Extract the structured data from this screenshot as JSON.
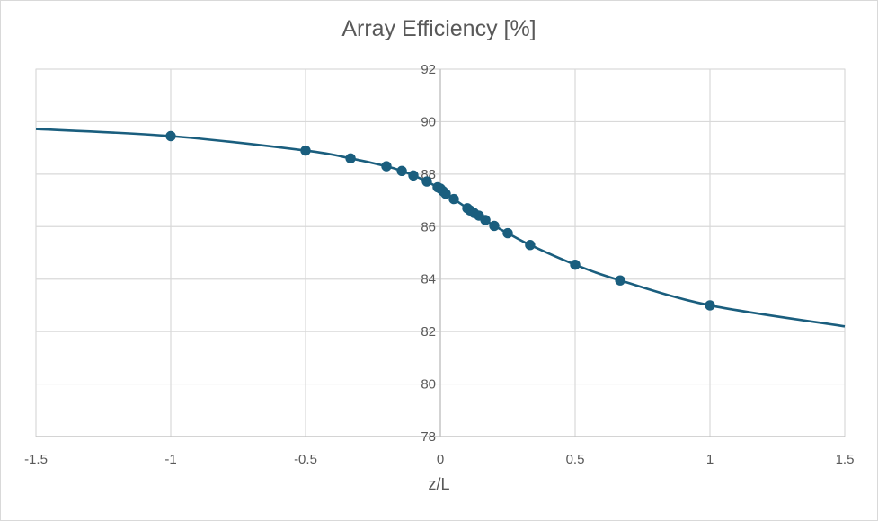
{
  "chart_data": {
    "type": "scatter",
    "title": "Array Efficiency [%]",
    "xlabel": "z/L",
    "ylabel": "",
    "xlim": [
      -1.5,
      1.5
    ],
    "ylim": [
      78,
      92
    ],
    "x_ticks": [
      -1.5,
      -1,
      -0.5,
      0,
      0.5,
      1,
      1.5
    ],
    "x_tick_labels": [
      "-1.5",
      "-1",
      "-0.5",
      "0",
      "0.5",
      "1",
      "1.5"
    ],
    "y_ticks": [
      78,
      80,
      82,
      84,
      86,
      88,
      90,
      92
    ],
    "y_tick_labels": [
      "78",
      "80",
      "82",
      "84",
      "86",
      "88",
      "90",
      "92"
    ],
    "grid": true,
    "legend": "none",
    "series": [
      {
        "color": "#1a5e7e",
        "markers": true,
        "smooth_line": true,
        "x": [
          -1.5,
          -1.0,
          -0.5,
          -0.333,
          -0.2,
          -0.143,
          -0.1,
          -0.05,
          -0.01,
          0.0,
          0.01,
          0.02,
          0.05,
          0.1,
          0.11,
          0.125,
          0.143,
          0.167,
          0.2,
          0.25,
          0.333,
          0.5,
          0.667,
          1.0,
          1.5
        ],
        "y": [
          89.72,
          89.45,
          88.9,
          88.6,
          88.3,
          88.12,
          87.95,
          87.72,
          87.5,
          87.45,
          87.35,
          87.25,
          87.05,
          86.7,
          86.62,
          86.52,
          86.42,
          86.25,
          86.03,
          85.75,
          85.3,
          84.55,
          83.95,
          83.0,
          82.2
        ],
        "marker_mask": [
          false,
          true,
          true,
          true,
          true,
          true,
          true,
          true,
          true,
          true,
          true,
          true,
          true,
          true,
          true,
          true,
          true,
          true,
          true,
          true,
          true,
          true,
          true,
          true,
          false
        ]
      }
    ]
  }
}
